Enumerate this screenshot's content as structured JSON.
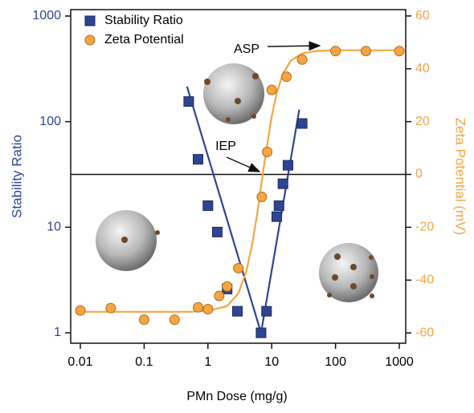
{
  "chart_data": {
    "type": "scatter",
    "xlabel": "PMn Dose (mg/g)",
    "ylabel": "Stability Ratio",
    "y2label": "Zeta Potential (mV)",
    "xscale": "log",
    "yscale": "log",
    "xlim": [
      0.00706,
      1260
    ],
    "xticks": [
      0.01,
      0.1,
      1,
      10,
      100,
      1000
    ],
    "ylim": [
      0.797,
      1150
    ],
    "yticks": [
      1,
      10,
      100,
      1000
    ],
    "y2lim": [
      -63.9,
      62.4
    ],
    "y2ticks": [
      -60,
      -40,
      -20,
      0,
      20,
      40,
      60
    ],
    "legend": "upper left",
    "series": [
      {
        "name": "Stability Ratio",
        "color": "#2e4594",
        "marker": "square",
        "x": [
          0.5,
          0.7,
          1.0,
          1.4,
          2.0,
          2.9,
          6.8,
          8.3,
          12,
          13,
          15,
          18,
          30
        ],
        "values": [
          155,
          44,
          16,
          9,
          2.6,
          1.6,
          1,
          1.6,
          12.6,
          16,
          25.8,
          38.6,
          96
        ]
      },
      {
        "name": "Zeta Potential",
        "color": "#f5a542",
        "marker": "circle",
        "axis": "y2",
        "x": [
          0.01,
          0.03,
          0.1,
          0.3,
          0.7,
          1.0,
          1.5,
          2.0,
          3.0,
          7.0,
          8.5,
          10,
          17,
          30,
          100,
          300,
          1000
        ],
        "values": [
          -51.5,
          -50.6,
          -55,
          -55,
          -50.3,
          -51,
          -46,
          -42.4,
          -35.5,
          -8.5,
          8.5,
          32,
          37,
          43.5,
          46.7,
          46.7,
          46.7
        ]
      }
    ],
    "fits": [
      {
        "color": "#2e4594",
        "x": [
          0.47,
          6.8,
          27
        ],
        "values": [
          215,
          1,
          130
        ]
      },
      {
        "color": "#f5a542",
        "axis": "y2",
        "x": [
          0.01,
          0.1,
          0.5,
          1,
          2,
          3,
          4,
          5,
          6,
          7,
          8,
          10,
          12,
          15,
          20,
          30,
          50,
          100,
          1000
        ],
        "values": [
          -52,
          -52,
          -52,
          -51.7,
          -49.8,
          -45,
          -36.7,
          -25.8,
          -14,
          -2.5,
          7.4,
          22,
          30.9,
          38.2,
          43.1,
          45.8,
          46.75,
          47,
          47
        ]
      }
    ],
    "hline": {
      "axis": "y2",
      "value": 0
    },
    "annotations": [
      "ASP",
      "IEP"
    ]
  }
}
